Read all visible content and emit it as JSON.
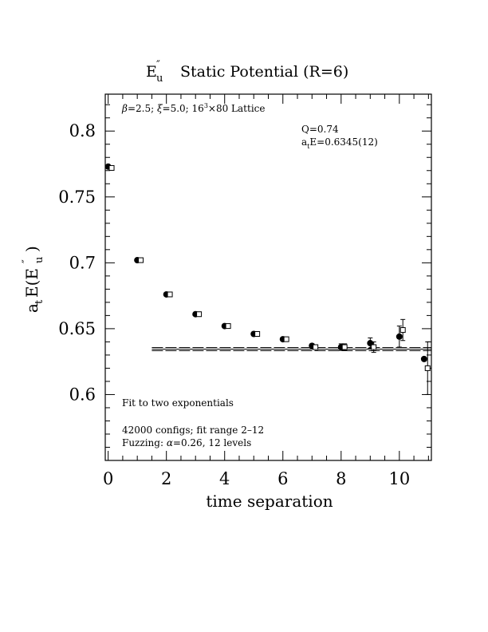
{
  "chart_data": {
    "type": "scatter",
    "title_main": "E",
    "title_sup": "″",
    "title_sub": "u",
    "title_rest": "Static Potential (R=6)",
    "xlabel": "time separation",
    "ylabel_main": "a",
    "ylabel_sub": "t",
    "ylabel_mid": "E(E",
    "ylabel_sup": "″",
    "ylabel_sub2": "u",
    "ylabel_end": ")",
    "xlim": [
      -0.1,
      11.1
    ],
    "ylim": [
      0.55,
      0.828
    ],
    "xticks": [
      0,
      2,
      4,
      6,
      8,
      10
    ],
    "xtick_labels": [
      "0",
      "2",
      "4",
      "6",
      "8",
      "10"
    ],
    "yticks": [
      0.6,
      0.65,
      0.7,
      0.75,
      0.8
    ],
    "ytick_labels": [
      "0.6",
      "0.65",
      "0.7",
      "0.75",
      "0.8"
    ],
    "annotations": {
      "lattice_beta": "β",
      "lattice_rest1": "=2.5; ",
      "lattice_xi": "ξ",
      "lattice_rest2": "=5.0; 16",
      "lattice_sup": "3",
      "lattice_rest3": "×80 Lattice",
      "q_value": "Q=0.74",
      "energy_a": "a",
      "energy_sub": "t",
      "energy_rest": "E=0.6345(12)",
      "fit_note": "Fit to two exponentials",
      "configs": "42000 configs; fit range 2–12",
      "fuzzing_pre": "Fuzzing: ",
      "fuzzing_alpha": "α",
      "fuzzing_post": "=0.26, 12 levels"
    },
    "series": [
      {
        "marker": "filled-circle",
        "points": [
          {
            "x": 0,
            "y": 0.773,
            "err": 0.0008
          },
          {
            "x": 1,
            "y": 0.702,
            "err": 0.0008
          },
          {
            "x": 2,
            "y": 0.676,
            "err": 0.0008
          },
          {
            "x": 3,
            "y": 0.661,
            "err": 0.0009
          },
          {
            "x": 4,
            "y": 0.652,
            "err": 0.001
          },
          {
            "x": 5,
            "y": 0.646,
            "err": 0.001
          },
          {
            "x": 6,
            "y": 0.642,
            "err": 0.0012
          },
          {
            "x": 7,
            "y": 0.637,
            "err": 0.0015
          },
          {
            "x": 8,
            "y": 0.636,
            "err": 0.0025
          },
          {
            "x": 9,
            "y": 0.639,
            "err": 0.004
          },
          {
            "x": 10,
            "y": 0.644,
            "err": 0.008
          },
          {
            "x": 10.85,
            "y": 0.627,
            "err": 0.0
          }
        ]
      },
      {
        "marker": "open-square",
        "points": [
          {
            "x": 0.12,
            "y": 0.772,
            "err": 0.0008
          },
          {
            "x": 1.12,
            "y": 0.702,
            "err": 0.0008
          },
          {
            "x": 2.12,
            "y": 0.676,
            "err": 0.0008
          },
          {
            "x": 3.12,
            "y": 0.661,
            "err": 0.0009
          },
          {
            "x": 4.12,
            "y": 0.652,
            "err": 0.001
          },
          {
            "x": 5.12,
            "y": 0.646,
            "err": 0.001
          },
          {
            "x": 6.12,
            "y": 0.642,
            "err": 0.0012
          },
          {
            "x": 7.12,
            "y": 0.636,
            "err": 0.0015
          },
          {
            "x": 8.12,
            "y": 0.636,
            "err": 0.0025
          },
          {
            "x": 9.12,
            "y": 0.636,
            "err": 0.004
          },
          {
            "x": 10.12,
            "y": 0.649,
            "err": 0.008
          },
          {
            "x": 10.97,
            "y": 0.62,
            "err": 0.02
          }
        ]
      }
    ],
    "fit": {
      "x_start": 1.5,
      "x_end": 11.1,
      "value": 0.6345,
      "error": 0.0012
    }
  }
}
